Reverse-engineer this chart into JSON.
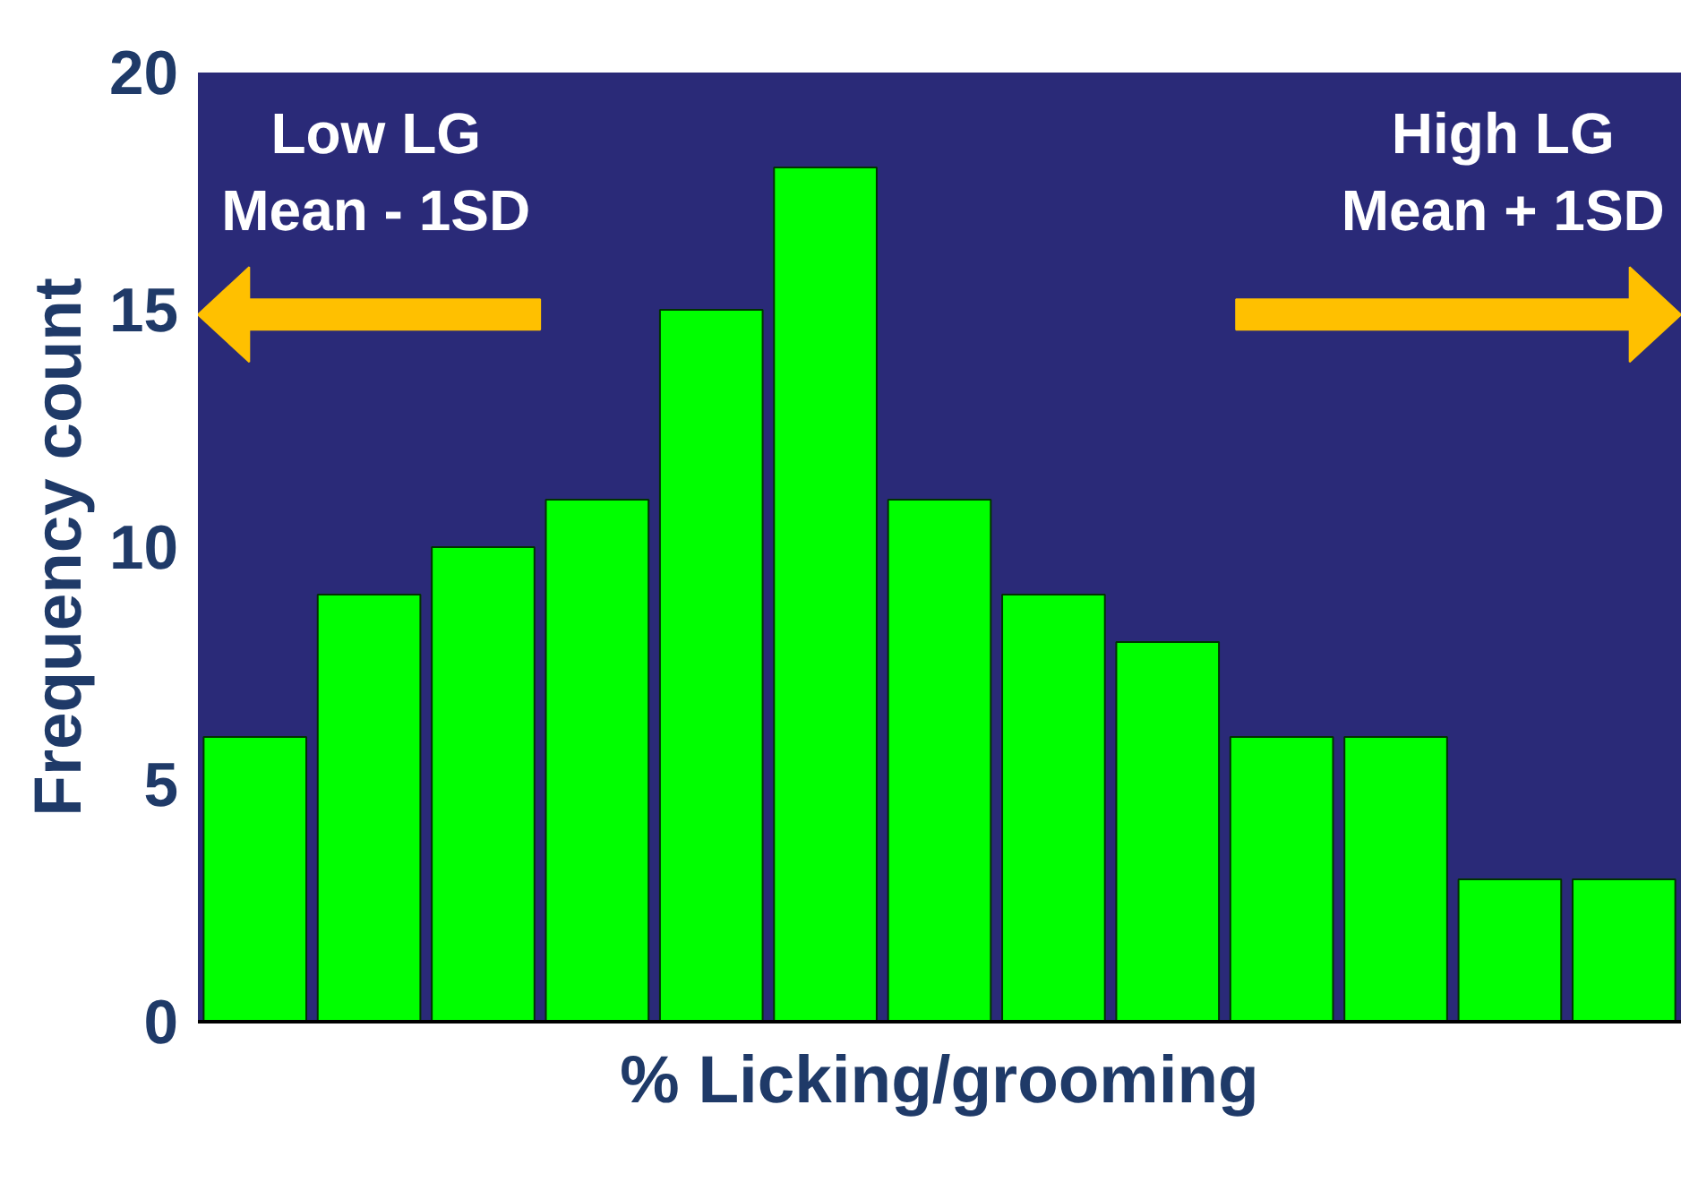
{
  "chart_data": {
    "type": "bar",
    "xlabel": "% Licking/grooming",
    "ylabel": "Frequency count",
    "categories": [
      null,
      null,
      null,
      null,
      null,
      null,
      null,
      null,
      null,
      null,
      null,
      null,
      null
    ],
    "values": [
      6,
      9,
      10,
      11,
      15,
      18,
      11,
      9,
      8,
      6,
      6,
      3,
      3
    ],
    "color": "#00ff00",
    "ylim": [
      0,
      20
    ],
    "yticks": [
      0,
      5,
      10,
      15,
      20
    ],
    "grid": false,
    "annotations": [
      "Low LG\nMean - 1SD",
      "High LG\nMean + 1SD"
    ]
  }
}
